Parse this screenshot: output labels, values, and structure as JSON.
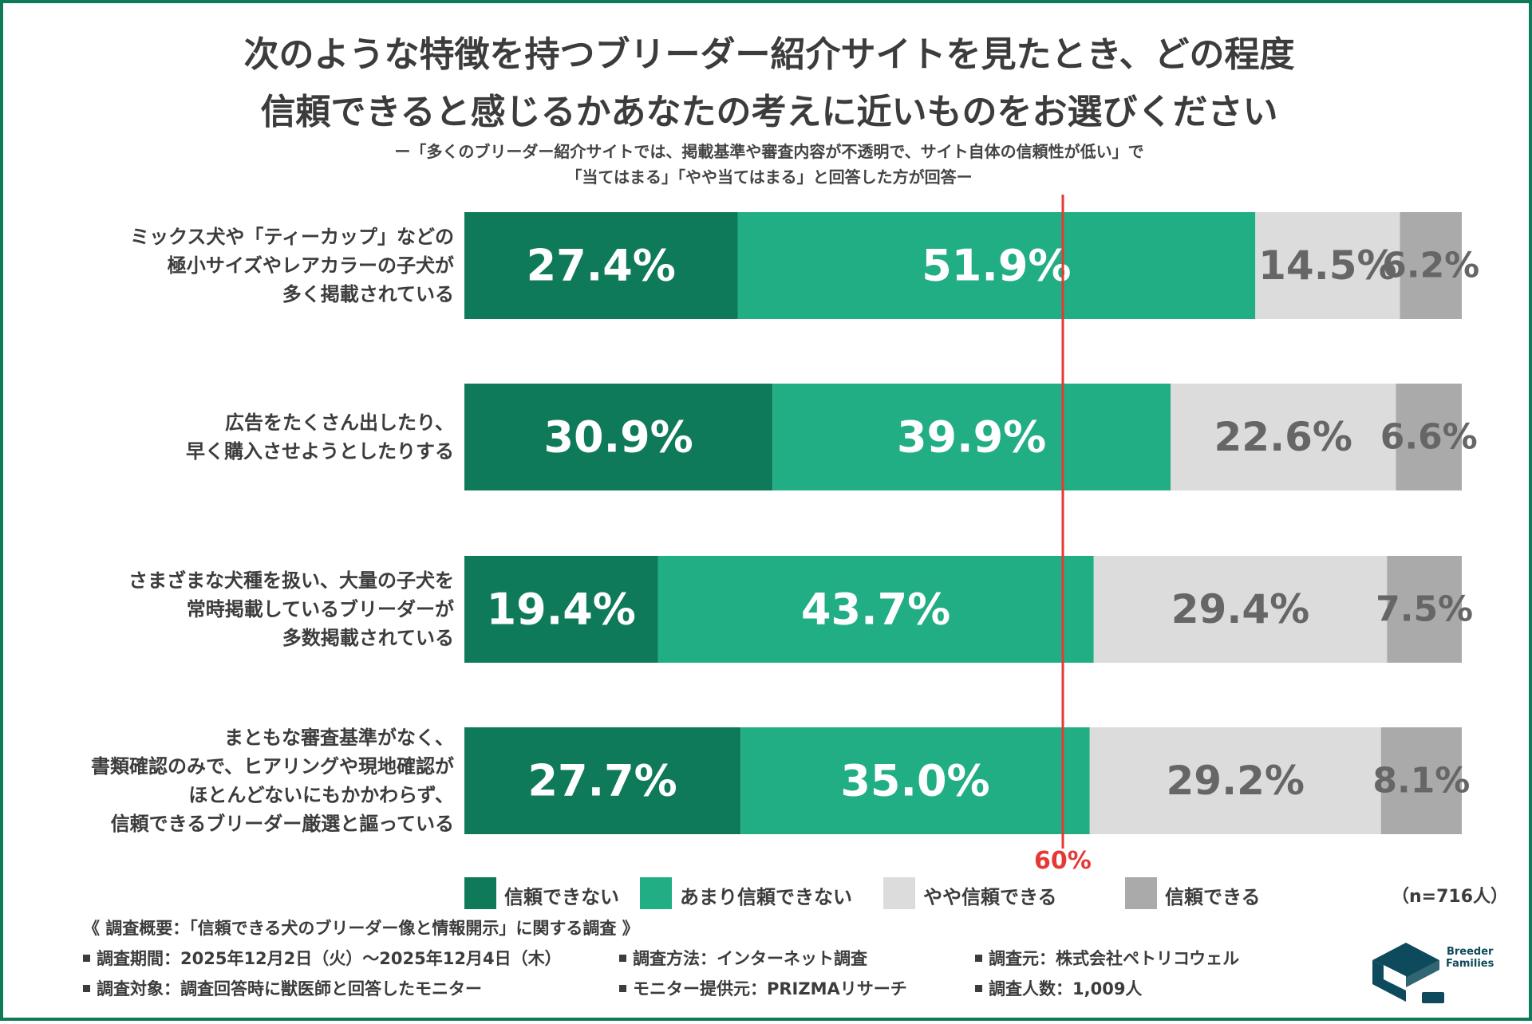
{
  "title": {
    "line1": "次のような特徴を持つブリーダー紹介サイトを見たとき、どの程度",
    "line2": "信頼できると感じるかあなたの考えに近いものをお選びください"
  },
  "subtitle": {
    "line1": "ー「多くのブリーダー紹介サイトでは、掲載基準や審査内容が不透明で、サイト自体の信頼性が低い」で",
    "line2": "「当てはまる」「やや当てはまる」と回答した方が回答ー"
  },
  "chart_data": {
    "type": "bar",
    "orientation": "horizontal",
    "stacked": true,
    "unit": "%",
    "xlim": [
      0,
      100
    ],
    "categories": [
      [
        "ミックス犬や「ティーカップ」などの",
        "極小サイズやレアカラーの子犬が",
        "多く掲載されている"
      ],
      [
        "広告をたくさん出したり、",
        "早く購入させようとしたりする"
      ],
      [
        "さまざまな犬種を扱い、大量の子犬を",
        "常時掲載しているブリーダーが",
        "多数掲載されている"
      ],
      [
        "まともな審査基準がなく、",
        "書類確認のみで、ヒアリングや現地確認が",
        "ほとんどないにもかかわらず、",
        "信頼できるブリーダー厳選と謳っている"
      ]
    ],
    "series": [
      {
        "name": "信頼できない",
        "color": "#0f7a59",
        "label_color": "#ffffff",
        "values": [
          27.4,
          30.9,
          19.4,
          27.7
        ],
        "labels": [
          "27.4%",
          "30.9%",
          "19.4%",
          "27.7%"
        ]
      },
      {
        "name": "あまり信頼できない",
        "color": "#22ae85",
        "label_color": "#ffffff",
        "values": [
          51.9,
          39.9,
          43.7,
          35.0
        ],
        "labels": [
          "51.9%",
          "39.9%",
          "43.7%",
          "35.0%"
        ]
      },
      {
        "name": "やや信頼できる",
        "color": "#dcdcdc",
        "label_color": "#666666",
        "values": [
          14.5,
          22.6,
          29.4,
          29.2
        ],
        "labels": [
          "14.5%",
          "22.6%",
          "29.4%",
          "29.2%"
        ]
      },
      {
        "name": "信頼できる",
        "color": "#aaaaaa",
        "label_color": "#666666",
        "values": [
          6.2,
          6.6,
          7.5,
          8.1
        ],
        "labels": [
          "6.2%",
          "6.6%",
          "7.5%",
          "8.1%"
        ]
      }
    ],
    "reference_line": {
      "value": 60,
      "label": "60%",
      "color": "#e53935"
    },
    "sample_size": "（n=716人）"
  },
  "survey": {
    "heading": "《 調査概要：「信頼できる犬のブリーダー像と情報開示」に関する調査 》",
    "items": [
      "調査期間：2025年12月2日（火）〜2025年12月4日（木）",
      "調査方法：インターネット調査",
      "調査元：株式会社ペトリコウェル",
      "調査対象：調査回答時に獣医師と回答したモニター",
      "モニター提供元：PRIZMAリサーチ",
      "調査人数：1,009人"
    ]
  },
  "logo": {
    "line1": "Breeder",
    "line2": "Families",
    "color": "#0d4a5c"
  }
}
